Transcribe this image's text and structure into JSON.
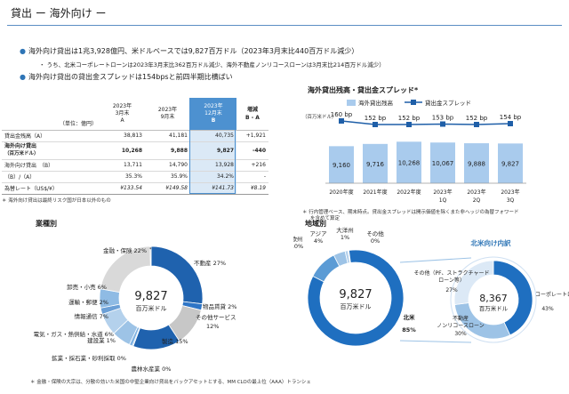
{
  "header": {
    "title": "貸出 ー 海外向け ー"
  },
  "bullets": {
    "b1": "海外向け貸出は1兆3,928億円、米ドルベースでは9,827百万ドル（2023年3月末比440百万ドル減少）",
    "b1_sub": "うち、北米コーポレートローンは2023年3月末比362百万ドル減少、海外不動産ノンリコースローンは3月末比214百万ドル減少）",
    "b2": "海外向け貸出の貸出金スプレッドは154bpsと前四半期比横ばい"
  },
  "table": {
    "unit": "（単位：億円）",
    "col_a": [
      "2023年",
      "3月末",
      "A"
    ],
    "col_b": [
      "2023年",
      "9月末",
      ""
    ],
    "col_c": [
      "2023年",
      "12月末",
      "B"
    ],
    "col_d": [
      "増減",
      "B - A"
    ],
    "rows": [
      {
        "label": "貸出金残高（A）",
        "a": "38,813",
        "b": "41,181",
        "c": "40,735",
        "d": "+1,921"
      },
      {
        "label1": "海外向け貸出",
        "label2": "（百万米ドル）",
        "a": "10,268",
        "b": "9,888",
        "c": "9,827",
        "d": "-440"
      },
      {
        "label": "海外向け貸出　（B）",
        "a": "13,711",
        "b": "14,790",
        "c": "13,928",
        "d": "+216"
      },
      {
        "label": "（B）/（A）",
        "a": "35.3%",
        "b": "35.9%",
        "c": "34.2%",
        "d": "-"
      },
      {
        "label": "為替レート（US$/¥）",
        "a": "¥133.54",
        "b": "¥149.58",
        "c": "¥141.73",
        "d": "¥8.19"
      }
    ],
    "note": "＊ 海外向け貸出は最終リスク国が日本以外のもの"
  },
  "bar_chart": {
    "title": "海外貸出残高・貸出金スプレッド*",
    "unit": "（百万米ドル）",
    "legend_bar": "海外貸出残高",
    "legend_line": "貸出金スプレッド",
    "note1": "＊ 行内管理ベース、期末時点。貸出金スプレッドは開示価値を除くまた非ヘッジの為替フォワード",
    "note2": "を含めて算定",
    "colors": {
      "bar": "#a9cbed",
      "line": "#1f5fa8"
    }
  },
  "chart_data": [
    {
      "type": "bar",
      "title": "海外貸出残高・貸出金スプレッド*",
      "categories": [
        "2020年度",
        "2021年度",
        "2022年度",
        "2023年 1Q",
        "2023年 2Q",
        "2023年 3Q"
      ],
      "cat_line1": [
        "2020年度",
        "2021年度",
        "2022年度",
        "2023年",
        "2023年",
        "2023年"
      ],
      "cat_line2": [
        "",
        "",
        "",
        "1Q",
        "2Q",
        "3Q"
      ],
      "series": [
        {
          "name": "海外貸出残高",
          "values": [
            9160,
            9716,
            10268,
            10067,
            9888,
            9827
          ]
        },
        {
          "name": "貸出金スプレッド",
          "values": [
            160,
            152,
            152,
            153,
            152,
            154
          ]
        }
      ],
      "value_labels": [
        "9,160",
        "9,716",
        "10,268",
        "10,067",
        "9,888",
        "9,827"
      ],
      "spread_labels": [
        "160 bp",
        "152 bp",
        "152 bp",
        "153 bp",
        "152 bp",
        "154 bp"
      ],
      "ylim": [
        0,
        11000
      ]
    },
    {
      "type": "pie",
      "title": "業種別",
      "center_value": "9,827",
      "center_unit": "百万米ドル",
      "slices": [
        {
          "label": "不動産",
          "value": 27,
          "text": "不動産 27%",
          "color": "#1f62ae"
        },
        {
          "label": "物品賃貸",
          "value": 2,
          "text": "物品賃貸 2%",
          "color": "#2e75c6"
        },
        {
          "label": "その他サービス",
          "value": 12,
          "text": "その他サービス 12%",
          "color": "#c7c7c7"
        },
        {
          "label": "製造",
          "value": 15,
          "text": "製造 15%",
          "color": "#1f62ae"
        },
        {
          "label": "鉱業・採石業・砂利採取",
          "value": 0,
          "text": "鉱業・採石業・砂利採取 0%",
          "color": "#5b9bd5"
        },
        {
          "label": "建設業",
          "value": 1,
          "text": "建設業 1%",
          "color": "#7fb2e2"
        },
        {
          "label": "電気・ガス・熱供給・水道",
          "value": 6,
          "text": "電気・ガス・熱供給・水道 6%",
          "color": "#9dc3e6"
        },
        {
          "label": "情報通信",
          "value": 7,
          "text": "情報通信 7%",
          "color": "#b4d1ec"
        },
        {
          "label": "運輸・郵便",
          "value": 2,
          "text": "運輸・郵便 2%",
          "color": "#6b9fd6"
        },
        {
          "label": "卸売・小売",
          "value": 6,
          "text": "卸売・小売 6%",
          "color": "#8fbbe4"
        },
        {
          "label": "金融・保険",
          "value": 22,
          "text": "金融・保険 22%",
          "color": "#d9d9d9"
        },
        {
          "label": "農林水産業",
          "value": 0,
          "text": "農林水産業 0%",
          "color": "#aaaaaa"
        }
      ],
      "footnote": "＊ 金融・保険の大宗は、分散の効いた米国の中堅企業向け貸出をバックアセットとする、MM CLOの最上位（AAA）トランシェ"
    },
    {
      "type": "pie",
      "title": "地域別",
      "center_value": "9,827",
      "center_unit": "百万米ドル",
      "slices": [
        {
          "label": "北米",
          "value": 85,
          "text1": "北米",
          "text2": "85%",
          "color": "#1f6fc0"
        },
        {
          "label": "欧州",
          "value": 10,
          "text1": "欧州",
          "text2": "10%",
          "color": "#5b9bd5"
        },
        {
          "label": "アジア",
          "value": 4,
          "text1": "アジア",
          "text2": "4%",
          "color": "#9dc3e6"
        },
        {
          "label": "大洋州",
          "value": 1,
          "text1": "大洋州",
          "text2": "1%",
          "color": "#b4d1ec"
        },
        {
          "label": "その他",
          "value": 0,
          "text1": "その他",
          "text2": "0%",
          "color": "#dddddd"
        }
      ]
    },
    {
      "type": "pie",
      "title": "北米向け内訳",
      "center_value": "8,367",
      "center_unit": "百万米ドル",
      "slices": [
        {
          "label": "コーポレートローン",
          "value": 43,
          "text": "コーポレートローン 43%",
          "color": "#1f6fc0"
        },
        {
          "label": "不動産ノンリコースローン",
          "value": 30,
          "text1": "不動産",
          "text2": "ノンリコースローン",
          "text3": "30%",
          "color": "#9dc3e6"
        },
        {
          "label": "その他（PF、ストラクチャードローン等）",
          "value": 27,
          "text1": "その他（PF、ストラクチャード",
          "text2": "ローン等）",
          "text3": "27%",
          "color": "#dce9f6"
        }
      ]
    }
  ]
}
